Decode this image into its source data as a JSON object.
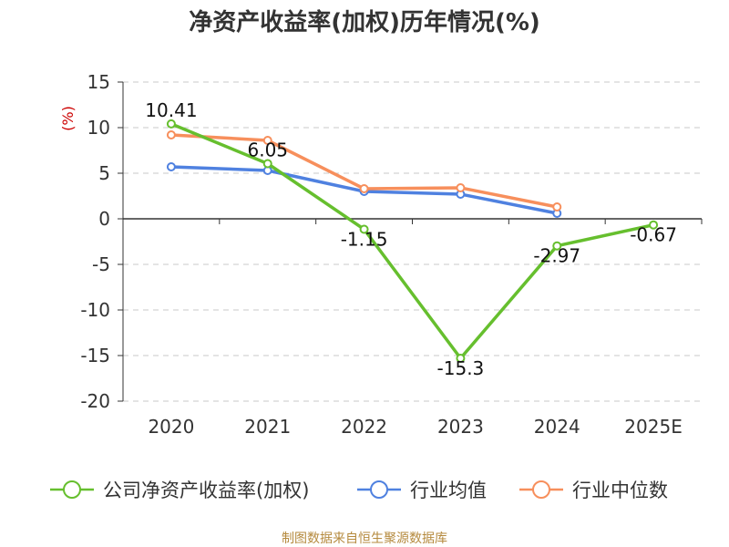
{
  "source_note": "制图数据来自恒生聚源数据库",
  "colors": {
    "company": "#66bf2e",
    "avg": "#4f81e0",
    "median": "#f78f5c",
    "grid": "#c8c8c8",
    "axis": "#333333",
    "unit": "#cc0000"
  },
  "chart_data": {
    "type": "line",
    "title": "净资产收益率(加权)历年情况(%)",
    "ylabel": "(%)",
    "xlabel": "",
    "categories": [
      "2020",
      "2021",
      "2022",
      "2023",
      "2024",
      "2025E"
    ],
    "ylim": [
      -20,
      15
    ],
    "yticks": [
      15,
      10,
      5,
      0,
      -5,
      -10,
      -15,
      -20
    ],
    "series": [
      {
        "name": "公司净资产收益率(加权)",
        "color_key": "company",
        "values": [
          10.41,
          6.05,
          -1.15,
          -15.3,
          -2.97,
          -0.67
        ],
        "labels": [
          "10.41",
          "6.05",
          "-1.15",
          "-15.3",
          "-2.97",
          "-0.67"
        ]
      },
      {
        "name": "行业均值",
        "color_key": "avg",
        "values": [
          5.7,
          5.3,
          3.0,
          2.7,
          0.6,
          null
        ]
      },
      {
        "name": "行业中位数",
        "color_key": "median",
        "values": [
          9.2,
          8.6,
          3.3,
          3.4,
          1.3,
          null
        ]
      }
    ],
    "legend_position": "bottom"
  }
}
